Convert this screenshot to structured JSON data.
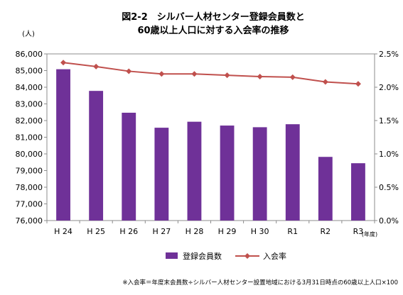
{
  "chart_data": {
    "type": "bar",
    "title_lines": [
      "図2-2　シルバー人材センター登録会員数と",
      "60歳以上人口に対する入会率の推移"
    ],
    "categories": [
      "H 24",
      "H 25",
      "H 26",
      "H 27",
      "H 28",
      "H 29",
      "H 30",
      "R1",
      "R2",
      "R3"
    ],
    "x_unit": "(年度)",
    "y_left_unit": "(人)",
    "y_left_range": [
      76000,
      86000
    ],
    "y_left_ticks": [
      "76,000",
      "77,000",
      "78,000",
      "79,000",
      "80,000",
      "81,000",
      "82,000",
      "83,000",
      "84,000",
      "85,000",
      "86,000"
    ],
    "y_right_range": [
      0,
      2.5
    ],
    "y_right_ticks": [
      "0.0%",
      "0.5%",
      "1.0%",
      "1.5%",
      "2.0%",
      "2.5%"
    ],
    "grid": false,
    "legend_position": "bottom",
    "series": [
      {
        "name": "登録会員数",
        "type": "bar",
        "axis": "left",
        "color": "#6f3198",
        "values": [
          85080,
          83780,
          82470,
          81570,
          81930,
          81700,
          81600,
          81780,
          79820,
          79440
        ]
      },
      {
        "name": "入会率",
        "type": "line",
        "axis": "right",
        "color": "#c0504d",
        "marker": "diamond",
        "values": [
          2.37,
          2.31,
          2.24,
          2.2,
          2.2,
          2.18,
          2.16,
          2.15,
          2.08,
          2.05
        ]
      }
    ],
    "note": "※入会率＝年度末会員数÷シルバー人材センター設置地域における3月31日時点の60歳以上人口×100"
  }
}
